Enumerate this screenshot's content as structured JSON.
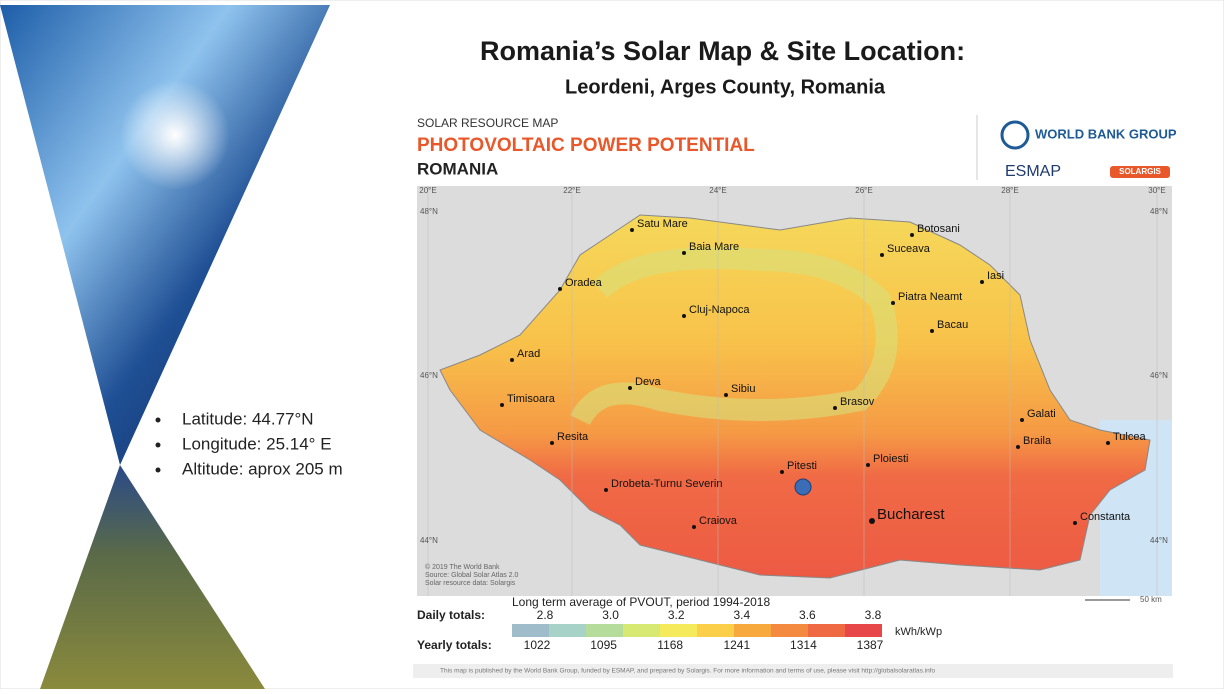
{
  "slide": {
    "title": "Romania’s Solar Map & Site Location:",
    "subtitle": "Leordeni, Arges County, Romania",
    "bullets": [
      "Latitude: 44.77°N",
      "Longitude: 25.14° E",
      "Altitude: aprox 205 m"
    ]
  },
  "map": {
    "kicker": "SOLAR RESOURCE MAP",
    "heading": "PHOTOVOLTAIC POWER POTENTIAL",
    "country": "ROMANIA",
    "logos": [
      "WORLD BANK GROUP",
      "ESMAP",
      "SOLARGIS"
    ],
    "lon_labels": [
      "20°E",
      "22°E",
      "24°E",
      "26°E",
      "28°E",
      "30°E"
    ],
    "lat_labels": [
      "48°N",
      "46°N",
      "44°N"
    ],
    "cities": [
      "Satu Mare",
      "Baia Mare",
      "Botosani",
      "Suceava",
      "Iasi",
      "Oradea",
      "Cluj-Napoca",
      "Piatra Neamt",
      "Bacau",
      "Arad",
      "Deva",
      "Sibiu",
      "Brasov",
      "Galati",
      "Timisoara",
      "Braila",
      "Tulcea",
      "Resita",
      "Pitesti",
      "Ploiesti",
      "Drobeta-Turnu Severin",
      "Craiova",
      "Bucharest",
      "Constanta"
    ],
    "credits": [
      "© 2019 The World Bank",
      "Source: Global Solar Atlas 2.0",
      "Solar resource data: Solargis"
    ],
    "scale": "50 km",
    "legend": {
      "title": "Long term average of PVOUT, period 1994-2018",
      "daily_label": "Daily totals:",
      "daily": [
        "2.8",
        "3.0",
        "3.2",
        "3.4",
        "3.6",
        "3.8"
      ],
      "unit": "kWh/kWp",
      "yearly_label": "Yearly totals:",
      "yearly": [
        1022,
        1095,
        1168,
        1241,
        1314,
        1387
      ]
    },
    "footer": "This map is published by the World Bank Group, funded by ESMAP, and prepared by Solargis. For more information and terms of use, please visit http://globalsolaratlas.info"
  }
}
